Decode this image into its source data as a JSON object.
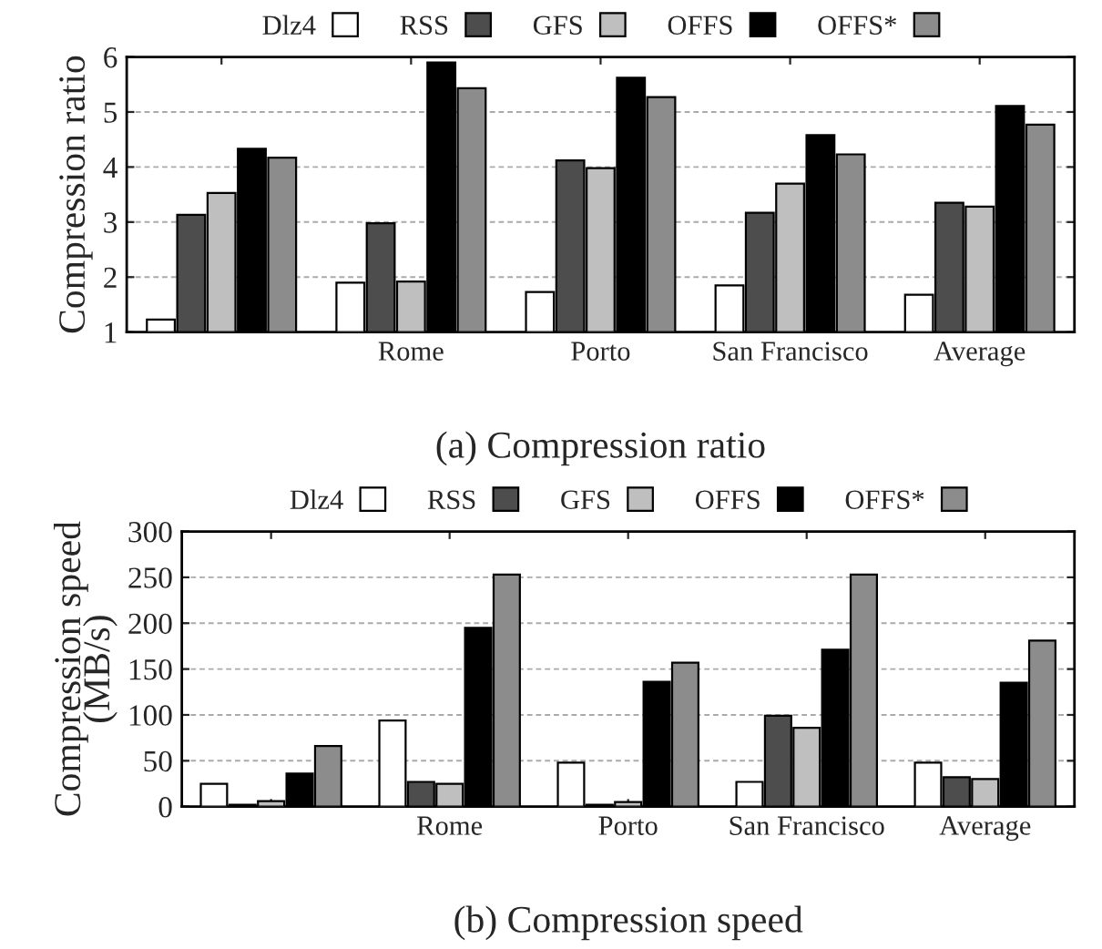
{
  "chart_data": [
    {
      "type": "bar",
      "title": "(a) Compression ratio",
      "ylabel": "Compression ratio",
      "categories": [
        null,
        "Rome",
        "Porto",
        "San Francisco",
        "Average"
      ],
      "series": [
        {
          "name": "Dlz4",
          "color": "#ffffff",
          "values": [
            1.23,
            1.9,
            1.73,
            1.85,
            1.68
          ]
        },
        {
          "name": "RSS",
          "color": "#4d4d4d",
          "values": [
            3.13,
            2.98,
            4.12,
            3.17,
            3.35
          ]
        },
        {
          "name": "GFS",
          "color": "#bfbfbf",
          "values": [
            3.53,
            1.92,
            3.98,
            3.7,
            3.28
          ]
        },
        {
          "name": "OFFS",
          "color": "#000000",
          "values": [
            4.33,
            5.9,
            5.62,
            4.58,
            5.11
          ]
        },
        {
          "name": "OFFS*",
          "color": "#8c8c8c",
          "values": [
            4.17,
            5.43,
            5.27,
            4.23,
            4.77
          ]
        }
      ],
      "ylim": [
        1,
        6
      ],
      "yticks": [
        1,
        2,
        3,
        4,
        5,
        6
      ],
      "grid": "y",
      "legend": "top"
    },
    {
      "type": "bar",
      "title": "(b) Compression speed",
      "ylabel": "Compression speed\n(MB/s)",
      "categories": [
        null,
        "Rome",
        "Porto",
        "San Francisco",
        "Average"
      ],
      "series": [
        {
          "name": "Dlz4",
          "color": "#ffffff",
          "values": [
            25,
            94,
            48,
            27,
            48
          ]
        },
        {
          "name": "RSS",
          "color": "#4d4d4d",
          "values": [
            2,
            27,
            2,
            99,
            32
          ]
        },
        {
          "name": "GFS",
          "color": "#bfbfbf",
          "values": [
            6,
            25,
            5,
            86,
            30
          ]
        },
        {
          "name": "OFFS",
          "color": "#000000",
          "values": [
            36,
            195,
            136,
            171,
            135
          ]
        },
        {
          "name": "OFFS*",
          "color": "#8c8c8c",
          "values": [
            66,
            253,
            157,
            253,
            181
          ]
        }
      ],
      "ylim": [
        0,
        300
      ],
      "yticks": [
        0,
        50,
        100,
        150,
        200,
        250,
        300
      ],
      "grid": "y",
      "legend": "top"
    }
  ]
}
